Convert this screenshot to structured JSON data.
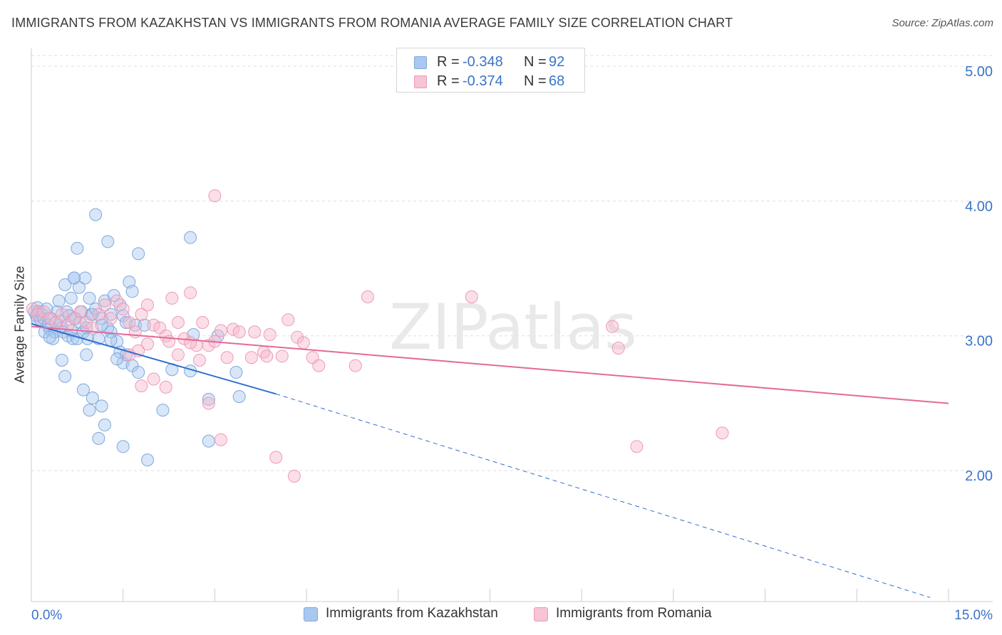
{
  "title": "IMMIGRANTS FROM KAZAKHSTAN VS IMMIGRANTS FROM ROMANIA AVERAGE FAMILY SIZE CORRELATION CHART",
  "source": "Source: ZipAtlas.com",
  "watermark": "ZIPatlas",
  "legend": {
    "row1": {
      "r_label": "R =",
      "r_value": "-0.348",
      "n_label": "N =",
      "n_value": "92"
    },
    "row2": {
      "r_label": "R =",
      "r_value": "-0.374",
      "n_label": "N =",
      "n_value": "68"
    }
  },
  "bottom_legend": {
    "series1": "Immigrants from Kazakhstan",
    "series2": "Immigrants from Romania"
  },
  "colors": {
    "blue_fill": "#a9c8f0",
    "blue_stroke": "#7fa8dd",
    "blue_line": "#2f6fcf",
    "pink_fill": "#f6b8cc",
    "pink_stroke": "#ee9ab5",
    "pink_line": "#e46a96",
    "tick_text": "#3a73c9",
    "grid": "#dddddd"
  },
  "chart_data": {
    "type": "scatter",
    "title": "IMMIGRANTS FROM KAZAKHSTAN VS IMMIGRANTS FROM ROMANIA AVERAGE FAMILY SIZE CORRELATION CHART",
    "xlabel": "",
    "ylabel": "Average Family Size",
    "xlim": [
      0,
      15
    ],
    "ylim": [
      1.05,
      5.1
    ],
    "x_tick_labels": [
      "0.0%",
      "15.0%"
    ],
    "y_ticks": [
      2,
      3,
      4,
      5
    ],
    "y_tick_labels": [
      "2.00",
      "3.00",
      "4.00",
      "5.00"
    ],
    "grid": "horizontal dashed",
    "legend_placement": "top-center",
    "series": [
      {
        "name": "Immigrants from Kazakhstan",
        "color": "#a9c8f0",
        "points": [
          [
            0.05,
            3.2
          ],
          [
            0.08,
            3.17
          ],
          [
            0.1,
            3.23
          ],
          [
            0.1,
            3.14
          ],
          [
            0.12,
            3.2
          ],
          [
            0.15,
            3.14
          ],
          [
            0.18,
            3.18
          ],
          [
            0.2,
            3.15
          ],
          [
            0.22,
            3.05
          ],
          [
            0.25,
            3.22
          ],
          [
            0.28,
            3.1
          ],
          [
            0.3,
            3.07
          ],
          [
            0.32,
            3.15
          ],
          [
            0.35,
            3.0
          ],
          [
            0.38,
            3.05
          ],
          [
            0.4,
            3.12
          ],
          [
            0.42,
            3.2
          ],
          [
            0.45,
            3.28
          ],
          [
            0.48,
            3.13
          ],
          [
            0.5,
            3.08
          ],
          [
            0.52,
            3.05
          ],
          [
            0.55,
            3.4
          ],
          [
            0.58,
            3.2
          ],
          [
            0.6,
            3.02
          ],
          [
            0.62,
            3.17
          ],
          [
            0.65,
            3.3
          ],
          [
            0.68,
            3.0
          ],
          [
            0.7,
            3.45
          ],
          [
            0.72,
            3.15
          ],
          [
            0.75,
            3.0
          ],
          [
            0.78,
            3.38
          ],
          [
            0.8,
            3.12
          ],
          [
            0.82,
            3.2
          ],
          [
            0.85,
            3.05
          ],
          [
            0.88,
            3.45
          ],
          [
            0.9,
            3.08
          ],
          [
            0.92,
            3.0
          ],
          [
            0.95,
            3.3
          ],
          [
            0.98,
            3.18
          ],
          [
            1.0,
            3.18
          ],
          [
            1.05,
            3.22
          ],
          [
            1.1,
            3.0
          ],
          [
            1.15,
            3.15
          ],
          [
            1.2,
            3.28
          ],
          [
            1.25,
            3.08
          ],
          [
            1.3,
            3.18
          ],
          [
            1.35,
            3.32
          ],
          [
            1.4,
            2.98
          ],
          [
            1.45,
            3.25
          ],
          [
            1.5,
            3.17
          ],
          [
            1.55,
            3.12
          ],
          [
            1.6,
            3.42
          ],
          [
            1.65,
            3.35
          ],
          [
            1.7,
            3.1
          ],
          [
            1.45,
            2.9
          ],
          [
            1.5,
            2.82
          ],
          [
            1.55,
            2.88
          ],
          [
            1.65,
            2.8
          ],
          [
            1.75,
            2.75
          ],
          [
            1.85,
            3.1
          ],
          [
            0.75,
            3.67
          ],
          [
            1.05,
            3.92
          ],
          [
            1.25,
            3.72
          ],
          [
            1.75,
            3.63
          ],
          [
            2.6,
            3.75
          ],
          [
            0.7,
            3.45
          ],
          [
            0.9,
            2.88
          ],
          [
            0.55,
            2.72
          ],
          [
            0.85,
            2.62
          ],
          [
            1.0,
            2.56
          ],
          [
            0.95,
            2.47
          ],
          [
            1.15,
            2.5
          ],
          [
            1.2,
            2.36
          ],
          [
            1.1,
            2.26
          ],
          [
            1.5,
            2.2
          ],
          [
            1.9,
            2.1
          ],
          [
            2.15,
            2.47
          ],
          [
            2.3,
            2.77
          ],
          [
            2.9,
            2.24
          ],
          [
            2.9,
            2.55
          ],
          [
            3.05,
            3.02
          ],
          [
            3.35,
            2.75
          ],
          [
            3.4,
            2.57
          ],
          [
            2.6,
            2.76
          ],
          [
            0.5,
            2.84
          ],
          [
            1.4,
            2.85
          ],
          [
            1.15,
            3.1
          ],
          [
            0.65,
            3.06
          ],
          [
            2.65,
            3.03
          ],
          [
            1.3,
            3.05
          ],
          [
            0.3,
            3.01
          ],
          [
            1.3,
            2.99
          ]
        ]
      },
      {
        "name": "Immigrants from Romania",
        "color": "#f6b8cc",
        "points": [
          [
            0.02,
            3.22
          ],
          [
            0.1,
            3.18
          ],
          [
            0.2,
            3.2
          ],
          [
            0.3,
            3.15
          ],
          [
            0.4,
            3.12
          ],
          [
            0.5,
            3.18
          ],
          [
            0.6,
            3.1
          ],
          [
            0.7,
            3.15
          ],
          [
            0.8,
            3.2
          ],
          [
            0.9,
            3.12
          ],
          [
            1.0,
            3.08
          ],
          [
            1.1,
            3.18
          ],
          [
            1.2,
            3.25
          ],
          [
            1.3,
            3.15
          ],
          [
            1.4,
            3.28
          ],
          [
            1.5,
            3.22
          ],
          [
            1.6,
            3.12
          ],
          [
            1.7,
            3.05
          ],
          [
            1.8,
            3.18
          ],
          [
            1.9,
            3.25
          ],
          [
            2.0,
            3.1
          ],
          [
            2.1,
            3.08
          ],
          [
            2.2,
            3.02
          ],
          [
            2.3,
            3.3
          ],
          [
            2.4,
            3.12
          ],
          [
            2.5,
            3.0
          ],
          [
            2.6,
            3.34
          ],
          [
            2.7,
            2.95
          ],
          [
            2.8,
            3.12
          ],
          [
            2.9,
            2.95
          ],
          [
            3.0,
            2.98
          ],
          [
            3.1,
            3.06
          ],
          [
            3.2,
            2.86
          ],
          [
            3.3,
            3.07
          ],
          [
            3.4,
            3.05
          ],
          [
            3.6,
            2.86
          ],
          [
            3.8,
            2.9
          ],
          [
            3.9,
            3.03
          ],
          [
            4.1,
            2.87
          ],
          [
            4.2,
            3.14
          ],
          [
            4.35,
            3.01
          ],
          [
            4.45,
            2.97
          ],
          [
            4.6,
            2.86
          ],
          [
            4.7,
            2.8
          ],
          [
            5.3,
            2.8
          ],
          [
            5.5,
            3.31
          ],
          [
            7.2,
            3.31
          ],
          [
            9.5,
            3.09
          ],
          [
            9.6,
            2.93
          ],
          [
            9.9,
            2.2
          ],
          [
            11.3,
            2.3
          ],
          [
            3.0,
            4.06
          ],
          [
            1.8,
            2.65
          ],
          [
            2.2,
            2.64
          ],
          [
            2.9,
            2.52
          ],
          [
            3.1,
            2.25
          ],
          [
            4.0,
            2.12
          ],
          [
            4.3,
            1.98
          ],
          [
            2.0,
            2.7
          ],
          [
            1.6,
            2.88
          ],
          [
            1.9,
            2.96
          ],
          [
            2.4,
            2.88
          ],
          [
            2.6,
            2.97
          ],
          [
            3.65,
            3.05
          ],
          [
            2.75,
            2.84
          ],
          [
            3.85,
            2.87
          ],
          [
            1.75,
            2.91
          ],
          [
            2.25,
            2.98
          ]
        ]
      }
    ],
    "trendlines": [
      {
        "series": "Immigrants from Kazakhstan",
        "solid_from": [
          0,
          3.11
        ],
        "solid_to": [
          4.0,
          2.59
        ],
        "dashed_to": [
          14.7,
          1.08
        ]
      },
      {
        "series": "Immigrants from Romania",
        "from": [
          0,
          3.09
        ],
        "to": [
          15,
          2.52
        ]
      }
    ]
  }
}
